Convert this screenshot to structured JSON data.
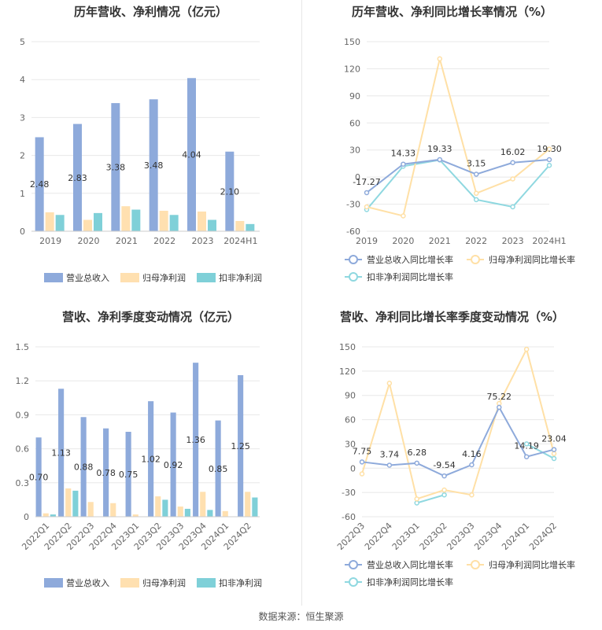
{
  "footer": "数据来源：恒生聚源",
  "colors": {
    "revenue": "#8eaadb",
    "net_profit": "#ffe0b0",
    "deducted_profit": "#7fd0d8",
    "revenue_line": "#8eaadb",
    "net_line": "#ffe0a6",
    "deducted_line": "#8fd8e0",
    "grid": "#e8e8e8",
    "axis_text": "#666666"
  },
  "chart_data": [
    {
      "id": "c1",
      "type": "bar",
      "title": "历年营收、净利情况（亿元）",
      "categories": [
        "2019",
        "2020",
        "2021",
        "2022",
        "2023",
        "2024H1"
      ],
      "ylim": [
        0,
        5
      ],
      "yticks": [
        "0",
        "1",
        "2",
        "3",
        "4",
        "5"
      ],
      "series": [
        {
          "name": "营业总收入",
          "values": [
            2.48,
            2.83,
            3.38,
            3.48,
            4.04,
            2.1
          ],
          "labels": [
            "2.48",
            "2.83",
            "3.38",
            "3.48",
            "4.04",
            "2.10"
          ]
        },
        {
          "name": "归母净利润",
          "values": [
            0.5,
            0.3,
            0.66,
            0.54,
            0.52,
            0.27
          ]
        },
        {
          "name": "扣非净利润",
          "values": [
            0.43,
            0.48,
            0.57,
            0.43,
            0.3,
            0.19
          ]
        }
      ],
      "legend": "bottom",
      "grid": true
    },
    {
      "id": "c2",
      "type": "line",
      "title": "历年营收、净利同比增长率情况（%）",
      "categories": [
        "2019",
        "2020",
        "2021",
        "2022",
        "2023",
        "2024H1"
      ],
      "ylim": [
        -60,
        150
      ],
      "yticks": [
        "-60",
        "-30",
        "0",
        "30",
        "60",
        "90",
        "120",
        "150"
      ],
      "series": [
        {
          "name": "营业总收入同比增长率",
          "values": [
            -17.27,
            14.33,
            19.33,
            3.15,
            16.02,
            19.3
          ],
          "labels": [
            "-17.27",
            "14.33",
            "19.33",
            "3.15",
            "16.02",
            "19.30"
          ]
        },
        {
          "name": "归母净利润同比增长率",
          "values": [
            -33,
            -43,
            131,
            -18,
            -2,
            31
          ]
        },
        {
          "name": "扣非净利润同比增长率",
          "values": [
            -36,
            12,
            19,
            -25,
            -33,
            13
          ]
        }
      ],
      "legend": "bottom",
      "grid": true
    },
    {
      "id": "c3",
      "type": "bar",
      "title": "营收、净利季度变动情况（亿元）",
      "categories": [
        "2022Q1",
        "2022Q2",
        "2022Q3",
        "2022Q4",
        "2023Q1",
        "2023Q2",
        "2023Q3",
        "2023Q4",
        "2024Q1",
        "2024Q2"
      ],
      "ylim": [
        0,
        1.5
      ],
      "yticks": [
        "0",
        "0.3",
        "0.6",
        "0.9",
        "1.2",
        "1.5"
      ],
      "series": [
        {
          "name": "营业总收入",
          "values": [
            0.7,
            1.13,
            0.88,
            0.78,
            0.75,
            1.02,
            0.92,
            1.36,
            0.85,
            1.25
          ],
          "labels": [
            "0.70",
            "1.13",
            "0.88",
            "0.78",
            "0.75",
            "1.02",
            "0.92",
            "1.36",
            "0.85",
            "1.25"
          ]
        },
        {
          "name": "归母净利润",
          "values": [
            0.03,
            0.25,
            0.13,
            0.12,
            0.02,
            0.18,
            0.09,
            0.22,
            0.05,
            0.22
          ]
        },
        {
          "name": "扣非净利润",
          "values": [
            0.02,
            0.23,
            0.0,
            0.0,
            0.0,
            0.15,
            0.07,
            0.06,
            0.0,
            0.17
          ]
        }
      ],
      "legend": "bottom",
      "grid": true
    },
    {
      "id": "c4",
      "type": "line",
      "title": "营收、净利同比增长率季度变动情况（%）",
      "categories": [
        "2022Q3",
        "2022Q4",
        "2023Q1",
        "2023Q2",
        "2023Q3",
        "2023Q4",
        "2024Q1",
        "2024Q2"
      ],
      "ylim": [
        -60,
        150
      ],
      "yticks": [
        "-60",
        "-30",
        "0",
        "30",
        "60",
        "90",
        "120",
        "150"
      ],
      "series": [
        {
          "name": "营业总收入同比增长率",
          "values": [
            7.75,
            3.74,
            6.28,
            -9.54,
            4.16,
            75.22,
            14.19,
            23.04
          ],
          "labels": [
            "7.75",
            "3.74",
            "6.28",
            "-9.54",
            "4.16",
            "75.22",
            "14.19",
            "23.04"
          ]
        },
        {
          "name": "归母净利润同比增长率",
          "values": [
            -7,
            105,
            -38,
            -27,
            -33,
            80,
            147,
            18
          ]
        },
        {
          "name": "扣非净利润同比增长率",
          "values": [
            null,
            null,
            -43,
            -33,
            null,
            null,
            30,
            12
          ]
        }
      ],
      "legend": "bottom",
      "grid": true
    }
  ]
}
